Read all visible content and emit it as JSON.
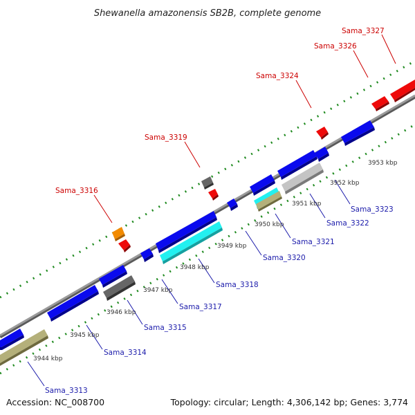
{
  "title": "Shewanella amazonensis SB2B, complete genome",
  "accession": "Accession: NC_008700",
  "summary": "Topology: circular; Length: 4,306,142 bp; Genes: 3,774",
  "colors": {
    "backbone": "#8c8c8c",
    "tick": "#1f8a1f",
    "blue": "#0a0aee",
    "red": "#ee0a0a",
    "gray": "#666666",
    "silver": "#c4c4c4",
    "cyan": "#22f0f0",
    "olive": "#b4b07a",
    "orange": "#f28a00",
    "label_red": "#cc0000",
    "label_blue": "#1a1aaa"
  },
  "kbp_labels": [
    "3944 kbp",
    "3945 kbp",
    "3946 kbp",
    "3947 kbp",
    "3948 kbp",
    "3949 kbp",
    "3950 kbp",
    "3951 kbp",
    "3952 kbp",
    "3953 kbp"
  ],
  "genes": [
    {
      "label": "Sama_3313",
      "color": "blue",
      "strand": "minus"
    },
    {
      "label": "Sama_3314",
      "color": "blue",
      "strand": "minus"
    },
    {
      "label": "Sama_3315",
      "color": "blue",
      "strand": "minus"
    },
    {
      "label": "Sama_3316",
      "color": "red",
      "strand": "plus"
    },
    {
      "label": "Sama_3317",
      "color": "blue",
      "strand": "minus"
    },
    {
      "label": "Sama_3318",
      "color": "blue",
      "strand": "minus"
    },
    {
      "label": "Sama_3319",
      "color": "red",
      "strand": "plus"
    },
    {
      "label": "Sama_3320",
      "color": "blue",
      "strand": "minus"
    },
    {
      "label": "Sama_3321",
      "color": "blue",
      "strand": "minus"
    },
    {
      "label": "Sama_3322",
      "color": "blue",
      "strand": "minus"
    },
    {
      "label": "Sama_3323",
      "color": "blue",
      "strand": "minus"
    },
    {
      "label": "Sama_3324",
      "color": "red",
      "strand": "plus"
    },
    {
      "label": "Sama_3326",
      "color": "red",
      "strand": "plus"
    },
    {
      "label": "Sama_3327",
      "color": "red",
      "strand": "plus"
    }
  ]
}
